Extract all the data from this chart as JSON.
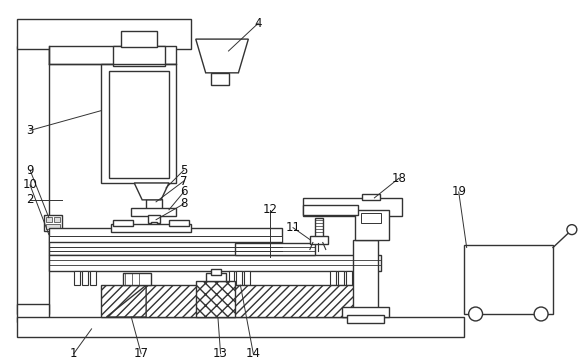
{
  "background_color": "#ffffff",
  "line_color": "#333333",
  "line_width": 1.0,
  "fig_w": 5.88,
  "fig_h": 3.64,
  "dpi": 100
}
